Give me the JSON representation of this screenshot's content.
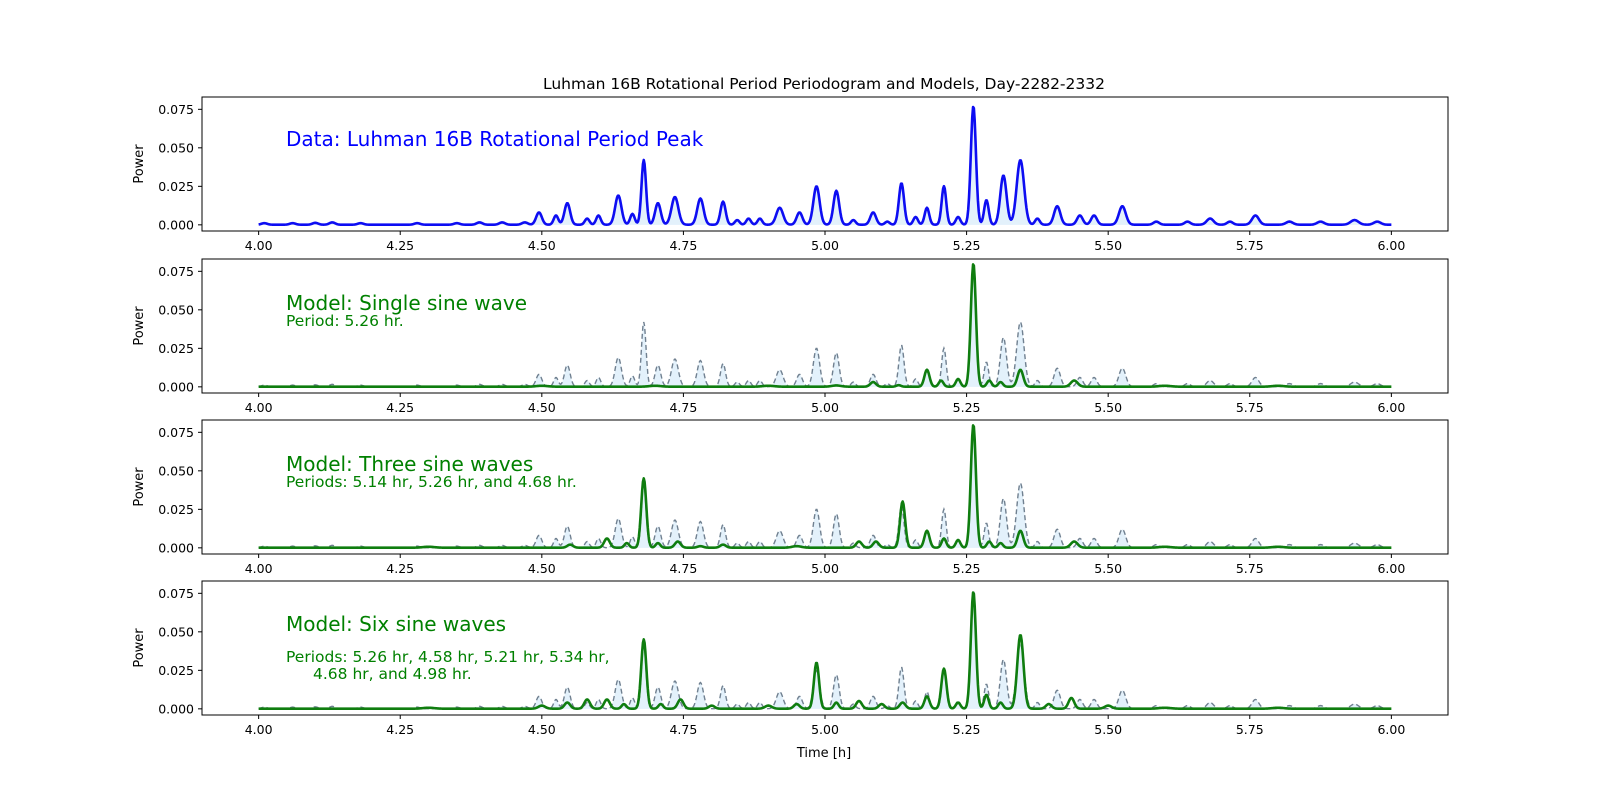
{
  "figure": {
    "title": "Luhman 16B Rotational Period Periodogram and Models, Day-2282-2332",
    "xlabel": "Time [h]"
  },
  "colors": {
    "data_line": "#0d0df2",
    "model_line": "#0f7d0f",
    "reference_line": "#708090",
    "fill": "#e3f1fb",
    "annotation_data": "#0000ff",
    "annotation_model": "#008000"
  },
  "chart_data": [
    {
      "type": "line",
      "ylabel": "Power",
      "xlim": [
        3.9,
        6.1
      ],
      "ylim": [
        -0.004,
        0.083
      ],
      "xticks": [
        "4.00",
        "4.25",
        "4.50",
        "4.75",
        "5.00",
        "5.25",
        "5.50",
        "5.75",
        "6.00"
      ],
      "yticks": [
        "0.000",
        "0.025",
        "0.050",
        "0.075"
      ],
      "annotations": [
        "Data: Luhman 16B Rotational Period Peak"
      ],
      "series": [
        {
          "role": "data",
          "peaks": [
            [
              4.01,
              0.001,
              0.005
            ],
            [
              4.06,
              0.001,
              0.005
            ],
            [
              4.1,
              0.0012,
              0.005
            ],
            [
              4.13,
              0.0015,
              0.005
            ],
            [
              4.18,
              0.001,
              0.005
            ],
            [
              4.28,
              0.001,
              0.005
            ],
            [
              4.35,
              0.001,
              0.005
            ],
            [
              4.39,
              0.0015,
              0.005
            ],
            [
              4.43,
              0.0015,
              0.005
            ],
            [
              4.47,
              0.0015,
              0.005
            ],
            [
              4.495,
              0.008,
              0.005
            ],
            [
              4.525,
              0.006,
              0.004
            ],
            [
              4.545,
              0.014,
              0.005
            ],
            [
              4.58,
              0.004,
              0.004
            ],
            [
              4.6,
              0.006,
              0.004
            ],
            [
              4.635,
              0.019,
              0.0055
            ],
            [
              4.66,
              0.007,
              0.004
            ],
            [
              4.68,
              0.042,
              0.004
            ],
            [
              4.705,
              0.014,
              0.005
            ],
            [
              4.735,
              0.018,
              0.006
            ],
            [
              4.78,
              0.017,
              0.0055
            ],
            [
              4.82,
              0.015,
              0.0045
            ],
            [
              4.845,
              0.003,
              0.004
            ],
            [
              4.865,
              0.004,
              0.004
            ],
            [
              4.885,
              0.004,
              0.004
            ],
            [
              4.92,
              0.011,
              0.006
            ],
            [
              4.955,
              0.008,
              0.005
            ],
            [
              4.985,
              0.025,
              0.0055
            ],
            [
              5.02,
              0.022,
              0.005
            ],
            [
              5.05,
              0.003,
              0.004
            ],
            [
              5.085,
              0.008,
              0.005
            ],
            [
              5.11,
              0.002,
              0.004
            ],
            [
              5.135,
              0.027,
              0.0045
            ],
            [
              5.16,
              0.005,
              0.004
            ],
            [
              5.18,
              0.011,
              0.004
            ],
            [
              5.21,
              0.025,
              0.004
            ],
            [
              5.235,
              0.005,
              0.004
            ],
            [
              5.262,
              0.077,
              0.0045
            ],
            [
              5.285,
              0.016,
              0.004
            ],
            [
              5.315,
              0.032,
              0.0055
            ],
            [
              5.345,
              0.042,
              0.0065
            ],
            [
              5.375,
              0.004,
              0.004
            ],
            [
              5.41,
              0.012,
              0.0055
            ],
            [
              5.45,
              0.006,
              0.005
            ],
            [
              5.475,
              0.006,
              0.005
            ],
            [
              5.525,
              0.012,
              0.006
            ],
            [
              5.585,
              0.002,
              0.005
            ],
            [
              5.64,
              0.002,
              0.005
            ],
            [
              5.68,
              0.004,
              0.006
            ],
            [
              5.715,
              0.002,
              0.005
            ],
            [
              5.76,
              0.006,
              0.006
            ],
            [
              5.82,
              0.002,
              0.006
            ],
            [
              5.875,
              0.002,
              0.006
            ],
            [
              5.935,
              0.003,
              0.007
            ],
            [
              5.975,
              0.002,
              0.006
            ]
          ]
        }
      ]
    },
    {
      "type": "line",
      "ylabel": "Power",
      "xlim": [
        3.9,
        6.1
      ],
      "ylim": [
        -0.004,
        0.083
      ],
      "xticks": [
        "4.00",
        "4.25",
        "4.50",
        "4.75",
        "5.00",
        "5.25",
        "5.50",
        "5.75",
        "6.00"
      ],
      "yticks": [
        "0.000",
        "0.025",
        "0.050",
        "0.075"
      ],
      "annotations": [
        "Model: Single sine wave",
        "Period: 5.26 hr."
      ],
      "series": [
        {
          "role": "model",
          "peaks": [
            [
              4.5,
              0.0006,
              0.01
            ],
            [
              4.7,
              0.0006,
              0.01
            ],
            [
              4.9,
              0.0006,
              0.01
            ],
            [
              5.02,
              0.0008,
              0.008
            ],
            [
              5.085,
              0.003,
              0.005
            ],
            [
              5.13,
              0.001,
              0.004
            ],
            [
              5.18,
              0.011,
              0.0045
            ],
            [
              5.205,
              0.004,
              0.004
            ],
            [
              5.235,
              0.005,
              0.004
            ],
            [
              5.262,
              0.08,
              0.0045
            ],
            [
              5.29,
              0.004,
              0.004
            ],
            [
              5.31,
              0.003,
              0.004
            ],
            [
              5.345,
              0.011,
              0.005
            ],
            [
              5.44,
              0.004,
              0.006
            ],
            [
              5.6,
              0.0006,
              0.01
            ],
            [
              5.8,
              0.0006,
              0.01
            ]
          ]
        }
      ]
    },
    {
      "type": "line",
      "ylabel": "Power",
      "xlim": [
        3.9,
        6.1
      ],
      "ylim": [
        -0.004,
        0.083
      ],
      "xticks": [
        "4.00",
        "4.25",
        "4.50",
        "4.75",
        "5.00",
        "5.25",
        "5.50",
        "5.75",
        "6.00"
      ],
      "yticks": [
        "0.000",
        "0.025",
        "0.050",
        "0.075"
      ],
      "annotations": [
        "Model: Three sine waves",
        "Periods: 5.14 hr, 5.26 hr, and 4.68 hr."
      ],
      "series": [
        {
          "role": "model",
          "peaks": [
            [
              4.3,
              0.0006,
              0.01
            ],
            [
              4.55,
              0.002,
              0.005
            ],
            [
              4.615,
              0.006,
              0.005
            ],
            [
              4.65,
              0.003,
              0.004
            ],
            [
              4.68,
              0.045,
              0.0045
            ],
            [
              4.705,
              0.003,
              0.004
            ],
            [
              4.74,
              0.004,
              0.005
            ],
            [
              4.78,
              0.001,
              0.005
            ],
            [
              4.82,
              0.002,
              0.005
            ],
            [
              4.95,
              0.001,
              0.008
            ],
            [
              5.06,
              0.004,
              0.005
            ],
            [
              5.09,
              0.004,
              0.005
            ],
            [
              5.137,
              0.03,
              0.0045
            ],
            [
              5.18,
              0.011,
              0.0045
            ],
            [
              5.21,
              0.006,
              0.004
            ],
            [
              5.235,
              0.005,
              0.004
            ],
            [
              5.262,
              0.08,
              0.0045
            ],
            [
              5.29,
              0.004,
              0.004
            ],
            [
              5.31,
              0.003,
              0.004
            ],
            [
              5.345,
              0.011,
              0.005
            ],
            [
              5.44,
              0.004,
              0.006
            ],
            [
              5.6,
              0.0006,
              0.01
            ],
            [
              5.8,
              0.0006,
              0.01
            ]
          ]
        }
      ]
    },
    {
      "type": "line",
      "ylabel": "Power",
      "xlim": [
        3.9,
        6.1
      ],
      "ylim": [
        -0.004,
        0.083
      ],
      "xticks": [
        "4.00",
        "4.25",
        "4.50",
        "4.75",
        "5.00",
        "5.25",
        "5.50",
        "5.75",
        "6.00"
      ],
      "yticks": [
        "0.000",
        "0.025",
        "0.050",
        "0.075"
      ],
      "annotations": [
        "Model: Six sine waves",
        "Periods: 5.26 hr, 4.58 hr, 5.21 hr, 5.34 hr,",
        "4.68 hr, and 4.98 hr."
      ],
      "series": [
        {
          "role": "model",
          "peaks": [
            [
              4.3,
              0.0006,
              0.01
            ],
            [
              4.5,
              0.002,
              0.006
            ],
            [
              4.545,
              0.004,
              0.005
            ],
            [
              4.58,
              0.006,
              0.005
            ],
            [
              4.615,
              0.006,
              0.005
            ],
            [
              4.645,
              0.003,
              0.004
            ],
            [
              4.68,
              0.045,
              0.0045
            ],
            [
              4.71,
              0.003,
              0.004
            ],
            [
              4.745,
              0.006,
              0.005
            ],
            [
              4.8,
              0.002,
              0.005
            ],
            [
              4.9,
              0.002,
              0.006
            ],
            [
              4.95,
              0.003,
              0.005
            ],
            [
              4.985,
              0.03,
              0.0045
            ],
            [
              5.02,
              0.004,
              0.004
            ],
            [
              5.06,
              0.005,
              0.005
            ],
            [
              5.1,
              0.003,
              0.005
            ],
            [
              5.137,
              0.004,
              0.005
            ],
            [
              5.18,
              0.008,
              0.0045
            ],
            [
              5.21,
              0.026,
              0.0045
            ],
            [
              5.235,
              0.004,
              0.004
            ],
            [
              5.262,
              0.076,
              0.0045
            ],
            [
              5.285,
              0.009,
              0.004
            ],
            [
              5.31,
              0.004,
              0.004
            ],
            [
              5.345,
              0.048,
              0.0055
            ],
            [
              5.395,
              0.003,
              0.005
            ],
            [
              5.435,
              0.007,
              0.005
            ],
            [
              5.5,
              0.002,
              0.006
            ],
            [
              5.6,
              0.0006,
              0.01
            ],
            [
              5.8,
              0.0006,
              0.01
            ]
          ]
        }
      ]
    }
  ]
}
